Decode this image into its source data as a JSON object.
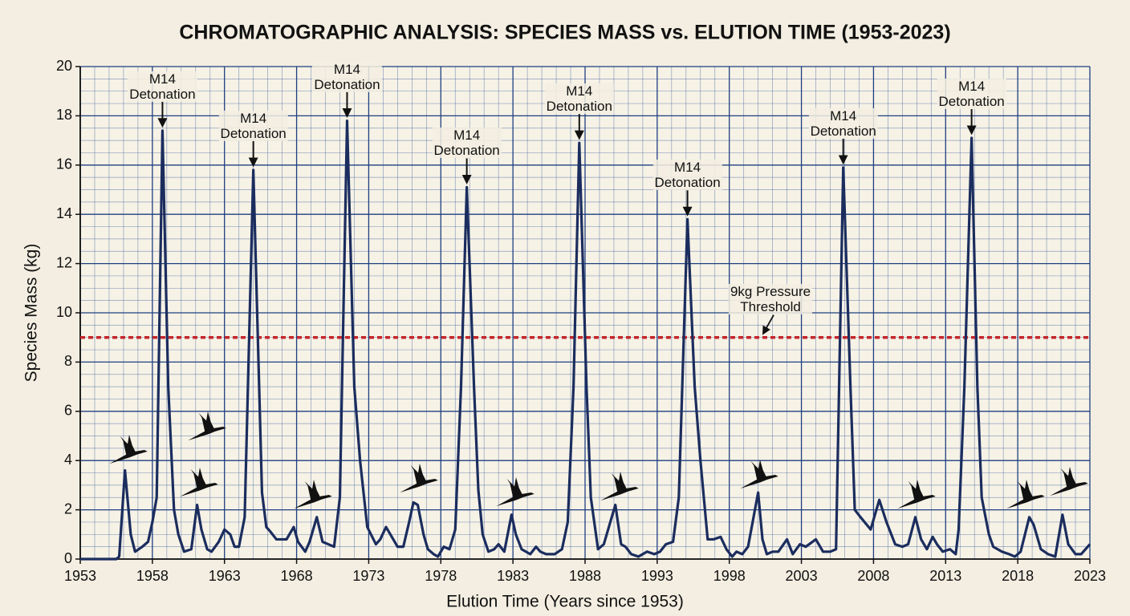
{
  "chart_data": {
    "type": "line",
    "title": "CHROMATOGRAPHIC ANALYSIS: SPECIES MASS vs. ELUTION TIME (1953-2023)",
    "x_label": "Elution Time (Years since 1953)",
    "y_label": "Species Mass (kg)",
    "color": "#1b2d5e",
    "x": [
      1953,
      1955.5,
      1955.7,
      1956.1,
      1956.5,
      1956.8,
      1957.3,
      1957.7,
      1958.0,
      1958.3,
      1958.7,
      1959.1,
      1959.5,
      1959.8,
      1960.2,
      1960.7,
      1961.1,
      1961.4,
      1961.8,
      1962.1,
      1962.6,
      1963.0,
      1963.4,
      1963.7,
      1964.0,
      1964.4,
      1965.0,
      1965.6,
      1965.9,
      1966.2,
      1966.6,
      1966.9,
      1967.3,
      1967.8,
      1968.1,
      1968.6,
      1968.9,
      1969.4,
      1969.8,
      1970.2,
      1970.6,
      1971.0,
      1971.5,
      1972.0,
      1972.4,
      1972.9,
      1973.5,
      1973.8,
      1974.2,
      1974.6,
      1975.0,
      1975.4,
      1975.8,
      1976.1,
      1976.4,
      1976.8,
      1977.1,
      1977.5,
      1977.8,
      1978.2,
      1978.6,
      1979.0,
      1979.4,
      1979.8,
      1980.3,
      1980.6,
      1980.9,
      1981.3,
      1981.7,
      1982.0,
      1982.4,
      1982.9,
      1983.2,
      1983.6,
      1984.2,
      1984.6,
      1984.9,
      1985.3,
      1985.9,
      1986.4,
      1986.8,
      1987.2,
      1987.6,
      1988.1,
      1988.4,
      1988.9,
      1989.3,
      1989.6,
      1990.1,
      1990.5,
      1990.8,
      1991.2,
      1991.7,
      1992.3,
      1992.8,
      1993.2,
      1993.6,
      1994.1,
      1994.5,
      1995.1,
      1995.6,
      1996.0,
      1996.5,
      1996.9,
      1997.4,
      1997.8,
      1998.2,
      1998.5,
      1998.9,
      1999.3,
      2000.0,
      2000.3,
      2000.6,
      2001.0,
      2001.4,
      2002.0,
      2002.4,
      2002.9,
      2003.3,
      2004.0,
      2004.5,
      2005.0,
      2005.4,
      2005.9,
      2006.4,
      2006.7,
      2007.1,
      2007.8,
      2008.4,
      2008.9,
      2009.5,
      2010.0,
      2010.4,
      2010.9,
      2011.3,
      2011.7,
      2012.1,
      2012.4,
      2012.8,
      2013.3,
      2013.7,
      2013.9,
      2014.3,
      2014.8,
      2015.2,
      2015.5,
      2016.0,
      2016.3,
      2016.9,
      2017.4,
      2017.8,
      2018.2,
      2018.8,
      2019.1,
      2019.6,
      2020.1,
      2020.6,
      2021.1,
      2021.5,
      2022.0,
      2022.4,
      2023
    ],
    "values": [
      0,
      0,
      0.1,
      3.6,
      1.0,
      0.3,
      0.5,
      0.7,
      1.5,
      2.5,
      17.4,
      7,
      2.0,
      1.0,
      0.3,
      0.4,
      2.2,
      1.2,
      0.4,
      0.3,
      0.7,
      1.2,
      1.0,
      0.5,
      0.5,
      1.7,
      15.8,
      2.7,
      1.3,
      1.1,
      0.8,
      0.8,
      0.8,
      1.3,
      0.7,
      0.3,
      0.7,
      1.7,
      0.7,
      0.6,
      0.5,
      2.5,
      17.8,
      7,
      4,
      1.3,
      0.6,
      0.8,
      1.3,
      0.9,
      0.5,
      0.5,
      1.5,
      2.3,
      2.2,
      1.0,
      0.4,
      0.2,
      0.1,
      0.5,
      0.4,
      1.2,
      7,
      15.1,
      7,
      2.8,
      1.0,
      0.3,
      0.4,
      0.6,
      0.3,
      1.8,
      1.0,
      0.4,
      0.2,
      0.5,
      0.3,
      0.2,
      0.2,
      0.4,
      1.5,
      7,
      16.9,
      7,
      2.5,
      0.4,
      0.6,
      1.2,
      2.2,
      0.6,
      0.5,
      0.2,
      0.1,
      0.3,
      0.2,
      0.3,
      0.6,
      0.7,
      2.5,
      13.8,
      7,
      4,
      0.8,
      0.8,
      0.9,
      0.4,
      0.1,
      0.3,
      0.2,
      0.5,
      2.7,
      0.8,
      0.2,
      0.3,
      0.3,
      0.8,
      0.2,
      0.6,
      0.5,
      0.8,
      0.3,
      0.3,
      0.4,
      15.9,
      7,
      2.0,
      1.7,
      1.2,
      2.4,
      1.5,
      0.6,
      0.5,
      0.6,
      1.7,
      0.8,
      0.4,
      0.9,
      0.6,
      0.3,
      0.4,
      0.2,
      1.2,
      7,
      17.1,
      7,
      2.5,
      1.0,
      0.5,
      0.3,
      0.2,
      0.1,
      0.3,
      1.7,
      1.4,
      0.4,
      0.2,
      0.1,
      1.8,
      0.6,
      0.2,
      0.2,
      0.6
    ],
    "xlim": [
      1953,
      2023
    ],
    "xticks": [
      1953,
      1958,
      1963,
      1968,
      1973,
      1978,
      1983,
      1988,
      1993,
      1998,
      2003,
      2008,
      2013,
      2018,
      2023
    ],
    "ylim": [
      0,
      20
    ],
    "yticks": [
      0,
      2,
      4,
      6,
      8,
      10,
      12,
      14,
      16,
      18,
      20
    ],
    "grid": true,
    "threshold": {
      "y": 9,
      "x": 2000.3,
      "label": "9kg Pressure\nThreshold",
      "color": "#c4272c"
    },
    "annotations": [
      {
        "text": "M14\nDetonation",
        "x": 1958.7,
        "y": 17.4
      },
      {
        "text": "M14\nDetonation",
        "x": 1965.0,
        "y": 15.8
      },
      {
        "text": "M14\nDetonation",
        "x": 1971.5,
        "y": 17.8
      },
      {
        "text": "M14\nDetonation",
        "x": 1979.8,
        "y": 15.1
      },
      {
        "text": "M14\nDetonation",
        "x": 1987.6,
        "y": 16.9
      },
      {
        "text": "M14\nDetonation",
        "x": 1995.1,
        "y": 13.8
      },
      {
        "text": "M14\nDetonation",
        "x": 2005.9,
        "y": 15.9
      },
      {
        "text": "M14\nDetonation",
        "x": 2014.8,
        "y": 17.1
      }
    ]
  }
}
